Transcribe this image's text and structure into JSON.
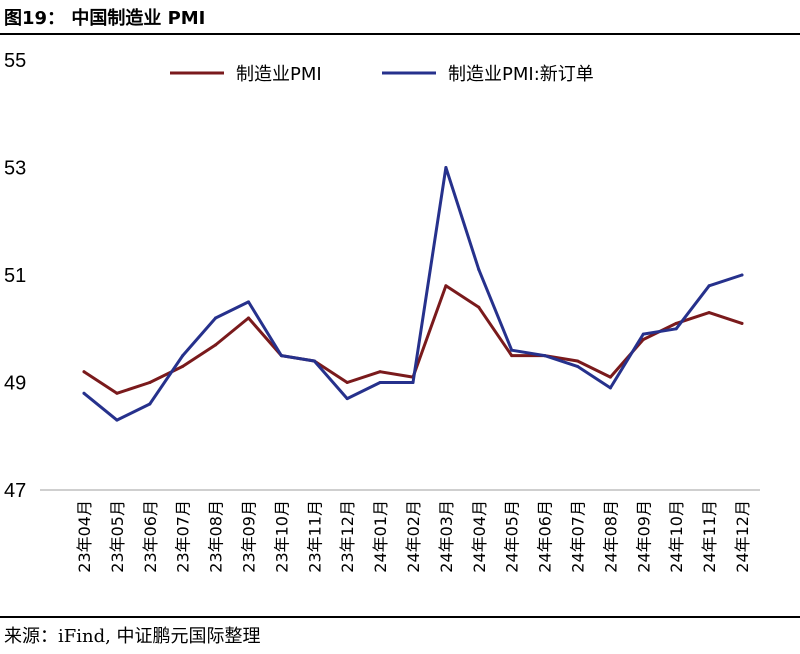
{
  "figure": {
    "title": "图19： 中国制造业 PMI",
    "source": "来源：iFind, 中证鹏元国际整理"
  },
  "chart_data": {
    "type": "line",
    "categories": [
      "23年04月",
      "23年05月",
      "23年06月",
      "23年07月",
      "23年08月",
      "23年09月",
      "23年10月",
      "23年11月",
      "23年12月",
      "24年01月",
      "24年02月",
      "24年03月",
      "24年04月",
      "24年05月",
      "24年06月",
      "24年07月",
      "24年08月",
      "24年09月",
      "24年10月",
      "24年11月",
      "24年12月"
    ],
    "series": [
      {
        "name": "制造业PMI",
        "color": "#7a1a1c",
        "values": [
          49.2,
          48.8,
          49.0,
          49.3,
          49.7,
          50.2,
          49.5,
          49.4,
          49.0,
          49.2,
          49.1,
          50.8,
          50.4,
          49.5,
          49.5,
          49.4,
          49.1,
          49.8,
          50.1,
          50.3,
          50.1
        ]
      },
      {
        "name": "制造业PMI:新订单",
        "color": "#26318c",
        "values": [
          48.8,
          48.3,
          48.6,
          49.5,
          50.2,
          50.5,
          49.5,
          49.4,
          48.7,
          49.0,
          49.0,
          53.0,
          51.1,
          49.6,
          49.5,
          49.3,
          48.9,
          49.9,
          50.0,
          50.8,
          51.0
        ]
      }
    ],
    "yticks": [
      47,
      49,
      51,
      53,
      55
    ],
    "ylim": [
      47,
      55
    ],
    "grid": false,
    "legend": "top"
  }
}
